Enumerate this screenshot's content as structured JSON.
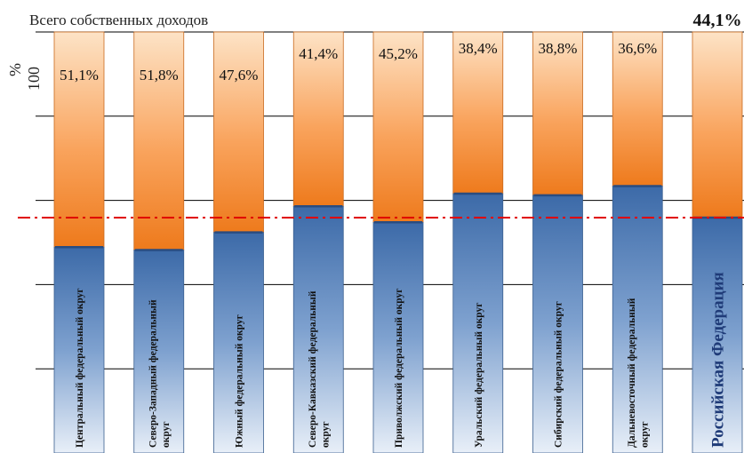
{
  "chart_data": {
    "type": "bar",
    "stacked": true,
    "title": "Всего собственных доходов",
    "ylabel": "%",
    "ylim": [
      0,
      100
    ],
    "yticks": [
      "100"
    ],
    "grid": true,
    "categories": [
      "Центральный федеральный округ",
      "Северо-Западный федеральный округ",
      "Южный федеральный округ",
      "Северо-Кавказский федеральный округ",
      "Приволжский федеральный округ",
      "Уральский федеральный округ",
      "Сибирский федеральный округ",
      "Дальневосточный федеральный округ",
      "Российская Федерация"
    ],
    "labels_display": [
      [
        "Центральный федеральный округ"
      ],
      [
        "Северо-Западный федеральный",
        "округ"
      ],
      [
        "Южный федеральный округ"
      ],
      [
        "Северо-Кавказский федеральный",
        "округ"
      ],
      [
        "Приволжский федеральный округ"
      ],
      [
        "Уральский федеральный округ"
      ],
      [
        "Сибирский федеральный округ"
      ],
      [
        "Дальневосточный федеральный",
        "округ"
      ],
      [
        "Российская Федерация"
      ]
    ],
    "series": [
      {
        "name": "",
        "color": "#4f81bd",
        "values": [
          48.9,
          48.2,
          52.4,
          58.6,
          54.8,
          61.6,
          61.2,
          63.4,
          55.9
        ]
      },
      {
        "name": "",
        "color": "#f79646",
        "values": [
          51.1,
          51.8,
          47.6,
          41.4,
          45.2,
          38.4,
          38.8,
          36.6,
          44.1
        ]
      }
    ],
    "data_labels": [
      "51,1%",
      "51,8%",
      "47,6%",
      "41,4%",
      "45,2%",
      "38,4%",
      "38,8%",
      "36,6%",
      "44,1%"
    ],
    "reference_line": {
      "value": 55.9,
      "color": "#e00000",
      "style": "dash-dot"
    }
  }
}
